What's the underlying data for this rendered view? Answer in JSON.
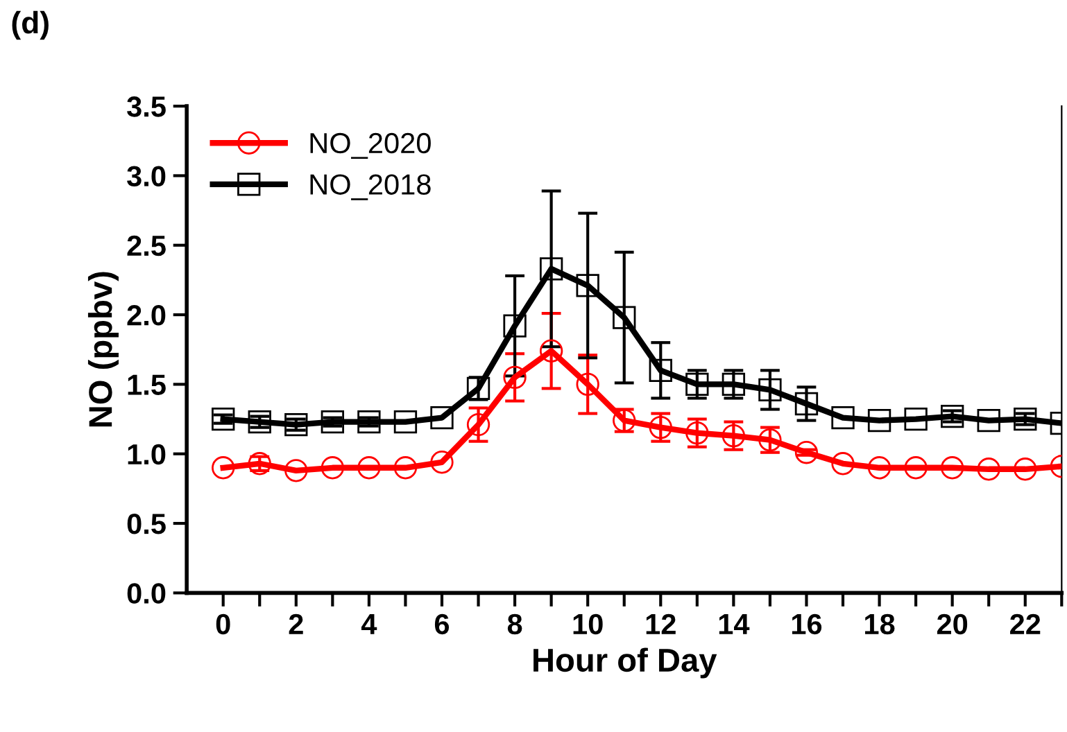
{
  "chart_data": {
    "type": "line",
    "annotations": [
      "(d)"
    ],
    "xlabel": "Hour of Day",
    "ylabel": "NO (ppbv)",
    "x": [
      0,
      1,
      2,
      3,
      4,
      5,
      6,
      7,
      8,
      9,
      10,
      11,
      12,
      13,
      14,
      15,
      16,
      17,
      18,
      19,
      20,
      21,
      22,
      23
    ],
    "series": [
      {
        "name": "NO_2020",
        "color": "#ff0000",
        "marker": "circle",
        "values": [
          0.9,
          0.93,
          0.88,
          0.9,
          0.9,
          0.9,
          0.94,
          1.21,
          1.55,
          1.74,
          1.5,
          1.24,
          1.19,
          1.15,
          1.13,
          1.1,
          1.01,
          0.93,
          0.9,
          0.9,
          0.9,
          0.89,
          0.89,
          0.91
        ],
        "errors": [
          null,
          0.05,
          null,
          null,
          null,
          null,
          null,
          0.12,
          0.17,
          0.27,
          0.21,
          0.08,
          0.1,
          0.1,
          0.1,
          0.09,
          0.02,
          null,
          null,
          null,
          null,
          null,
          null,
          null
        ]
      },
      {
        "name": "NO_2018",
        "color": "#000000",
        "marker": "square",
        "values": [
          1.25,
          1.23,
          1.21,
          1.23,
          1.23,
          1.23,
          1.26,
          1.47,
          1.92,
          2.33,
          2.21,
          1.98,
          1.6,
          1.5,
          1.5,
          1.46,
          1.36,
          1.26,
          1.24,
          1.25,
          1.27,
          1.24,
          1.25,
          1.22
        ],
        "errors": [
          0.03,
          0.04,
          0.04,
          0.03,
          0.03,
          null,
          null,
          0.08,
          0.36,
          0.56,
          0.52,
          0.47,
          0.2,
          0.1,
          0.1,
          0.14,
          0.12,
          null,
          null,
          null,
          0.04,
          null,
          0.04,
          null
        ]
      }
    ],
    "xlim": [
      -1,
      23
    ],
    "ylim": [
      0,
      3.5
    ],
    "xticks": [
      0,
      {
        "value": 1,
        "label": null
      },
      2,
      {
        "value": 3,
        "label": null
      },
      4,
      {
        "value": 5,
        "label": null
      },
      6,
      {
        "value": 7,
        "label": null
      },
      8,
      {
        "value": 9,
        "label": null
      },
      10,
      {
        "value": 11,
        "label": null
      },
      12,
      {
        "value": 13,
        "label": null
      },
      14,
      {
        "value": 15,
        "label": null
      },
      16,
      {
        "value": 17,
        "label": null
      },
      18,
      {
        "value": 19,
        "label": null
      },
      20,
      {
        "value": 21,
        "label": null
      },
      22,
      {
        "value": 23,
        "label": null
      }
    ],
    "yticks": [
      {
        "value": 0,
        "label": "0.0"
      },
      {
        "value": 0.5,
        "label": "0.5"
      },
      {
        "value": 1,
        "label": "1.0"
      },
      {
        "value": 1.5,
        "label": "1.5"
      },
      {
        "value": 2,
        "label": "2.0"
      },
      {
        "value": 2.5,
        "label": "2.5"
      },
      {
        "value": 3,
        "label": "3.0"
      },
      {
        "value": 3.5,
        "label": "3.5"
      }
    ],
    "legend": "top left",
    "grid": false
  }
}
